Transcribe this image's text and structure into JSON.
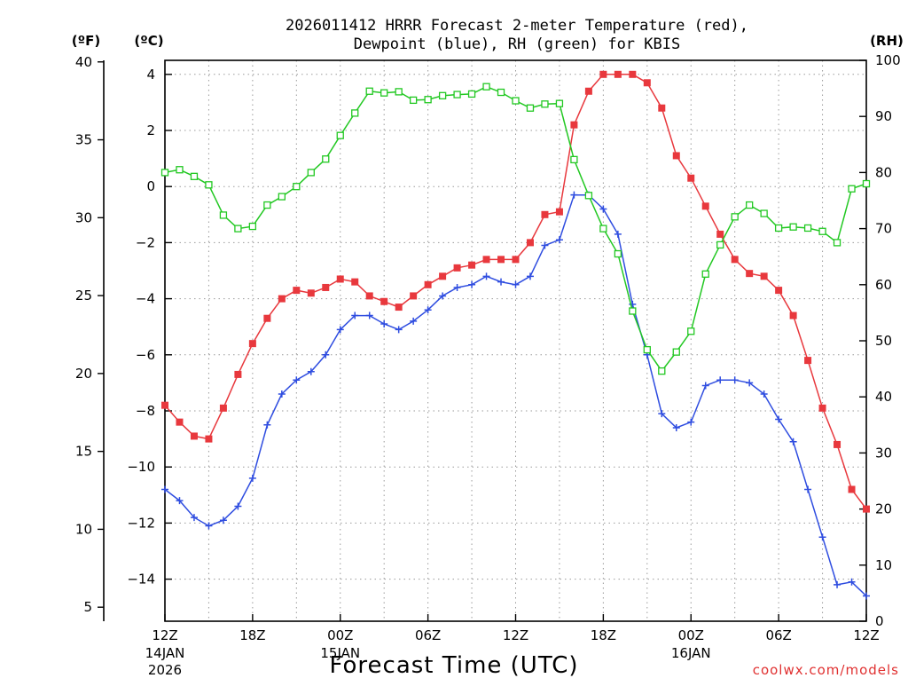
{
  "chart_data": {
    "type": "line",
    "title_line1": "2026011412 HRRR Forecast 2-meter Temperature (red),",
    "title_line2": "Dewpoint (blue), RH (green) for KBIS",
    "xlabel": "Forecast Time (UTC)",
    "units": {
      "fahrenheit": "(ºF)",
      "celsius": "(ºC)",
      "rh": "(RH)"
    },
    "credit": "coolwx.com/models",
    "x_hours": [
      0,
      1,
      2,
      3,
      4,
      5,
      6,
      7,
      8,
      9,
      10,
      11,
      12,
      13,
      14,
      15,
      16,
      17,
      18,
      19,
      20,
      21,
      22,
      23,
      24,
      25,
      26,
      27,
      28,
      29,
      30,
      31,
      32,
      33,
      34,
      35,
      36,
      37,
      38,
      39,
      40,
      41,
      42,
      43,
      44,
      45,
      46,
      47,
      48
    ],
    "xlim": [
      0,
      48
    ],
    "x_ticks": [
      {
        "hour": 0,
        "label": "12Z",
        "sub1": "14JAN",
        "sub2": "2026"
      },
      {
        "hour": 6,
        "label": "18Z",
        "sub1": "",
        "sub2": ""
      },
      {
        "hour": 12,
        "label": "00Z",
        "sub1": "15JAN",
        "sub2": ""
      },
      {
        "hour": 18,
        "label": "06Z",
        "sub1": "",
        "sub2": ""
      },
      {
        "hour": 24,
        "label": "12Z",
        "sub1": "",
        "sub2": ""
      },
      {
        "hour": 30,
        "label": "18Z",
        "sub1": "",
        "sub2": ""
      },
      {
        "hour": 36,
        "label": "00Z",
        "sub1": "16JAN",
        "sub2": ""
      },
      {
        "hour": 42,
        "label": "06Z",
        "sub1": "",
        "sub2": ""
      },
      {
        "hour": 48,
        "label": "12Z",
        "sub1": "",
        "sub2": ""
      }
    ],
    "ylim_c": [
      -15.5,
      4.5
    ],
    "y_ticks_c": [
      4,
      2,
      0,
      -2,
      -4,
      -6,
      -8,
      -10,
      -12,
      -14
    ],
    "y_ticks_c_labels": [
      "4",
      "2",
      "0",
      "−2",
      "−4",
      "−6",
      "−8",
      "−10",
      "−12",
      "−14"
    ],
    "y_ticks_f": [
      40,
      35,
      30,
      25,
      20,
      15,
      10,
      5
    ],
    "y_ticks_f_labels": [
      "40",
      "35",
      "30",
      "25",
      "20",
      "15",
      "10",
      "5"
    ],
    "ylim_rh": [
      0,
      100
    ],
    "y_ticks_rh": [
      100,
      90,
      80,
      70,
      60,
      50,
      40,
      30,
      20,
      10,
      0
    ],
    "y_ticks_rh_labels": [
      "100",
      "90",
      "80",
      "70",
      "60",
      "50",
      "40",
      "30",
      "20",
      "10",
      "0"
    ],
    "grid": true,
    "series": [
      {
        "name": "Temperature",
        "axis": "celsius",
        "color": "#e8383d",
        "marker": "filled-square",
        "values": [
          -7.8,
          -8.4,
          -8.9,
          -9.0,
          -7.9,
          -6.7,
          -5.6,
          -4.7,
          -4.0,
          -3.7,
          -3.8,
          -3.6,
          -3.3,
          -3.4,
          -3.9,
          -4.1,
          -4.3,
          -3.9,
          -3.5,
          -3.2,
          -2.9,
          -2.8,
          -2.6,
          -2.6,
          -2.6,
          -2.0,
          -1.0,
          -0.9,
          2.2,
          3.4,
          4.0,
          4.0,
          4.0,
          3.7,
          2.8,
          1.1,
          0.3,
          -0.7,
          -1.7,
          -2.6,
          -3.1,
          -3.2,
          -3.7,
          -4.6,
          -6.2,
          -7.9,
          -9.2,
          -10.8,
          -11.5
        ]
      },
      {
        "name": "Dewpoint",
        "axis": "celsius",
        "color": "#2f4de0",
        "marker": "plus",
        "values": [
          -10.8,
          -11.2,
          -11.8,
          -12.1,
          -11.9,
          -11.4,
          -10.4,
          -8.5,
          -7.4,
          -6.9,
          -6.6,
          -6.0,
          -5.1,
          -4.6,
          -4.6,
          -4.9,
          -5.1,
          -4.8,
          -4.4,
          -3.9,
          -3.6,
          -3.5,
          -3.2,
          -3.4,
          -3.5,
          -3.2,
          -2.1,
          -1.9,
          -0.3,
          -0.3,
          -0.8,
          -1.7,
          -4.2,
          -6.0,
          -8.1,
          -8.6,
          -8.4,
          -7.1,
          -6.9,
          -6.9,
          -7.0,
          -7.4,
          -8.3,
          -9.1,
          -10.8,
          -12.5,
          -14.2,
          -14.1,
          -14.6
        ]
      },
      {
        "name": "RH",
        "axis": "rh",
        "color": "#22c822",
        "marker": "open-square",
        "values": [
          80.0,
          80.5,
          79.3,
          77.8,
          72.4,
          70.0,
          70.4,
          74.2,
          75.7,
          77.5,
          80.0,
          82.4,
          86.6,
          90.6,
          94.5,
          94.2,
          94.4,
          92.9,
          93.0,
          93.7,
          93.9,
          94.0,
          95.3,
          94.3,
          92.8,
          91.5,
          92.2,
          92.3,
          82.3,
          75.9,
          70.0,
          65.5,
          55.3,
          48.4,
          44.6,
          48.0,
          51.7,
          61.9,
          67.1,
          72.1,
          74.2,
          72.7,
          70.1,
          70.3,
          70.1,
          69.5,
          67.5,
          77.1,
          78.0
        ]
      }
    ]
  }
}
